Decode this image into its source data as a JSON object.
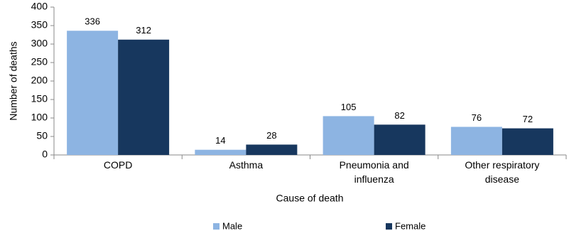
{
  "chart_data": {
    "type": "bar",
    "categories": [
      "COPD",
      "Asthma",
      "Pneumonia and influenza",
      "Other respiratory disease"
    ],
    "series": [
      {
        "name": "Male",
        "color": "#8db4e2",
        "values": [
          336,
          14,
          105,
          76
        ]
      },
      {
        "name": "Female",
        "color": "#17375e",
        "values": [
          312,
          28,
          82,
          72
        ]
      }
    ],
    "x_label": "Cause of death",
    "y_label": "Number of deaths",
    "ylim": [
      0,
      400
    ],
    "yticks": [
      0,
      50,
      100,
      150,
      200,
      250,
      300,
      350,
      400
    ],
    "legend": "bottom"
  }
}
